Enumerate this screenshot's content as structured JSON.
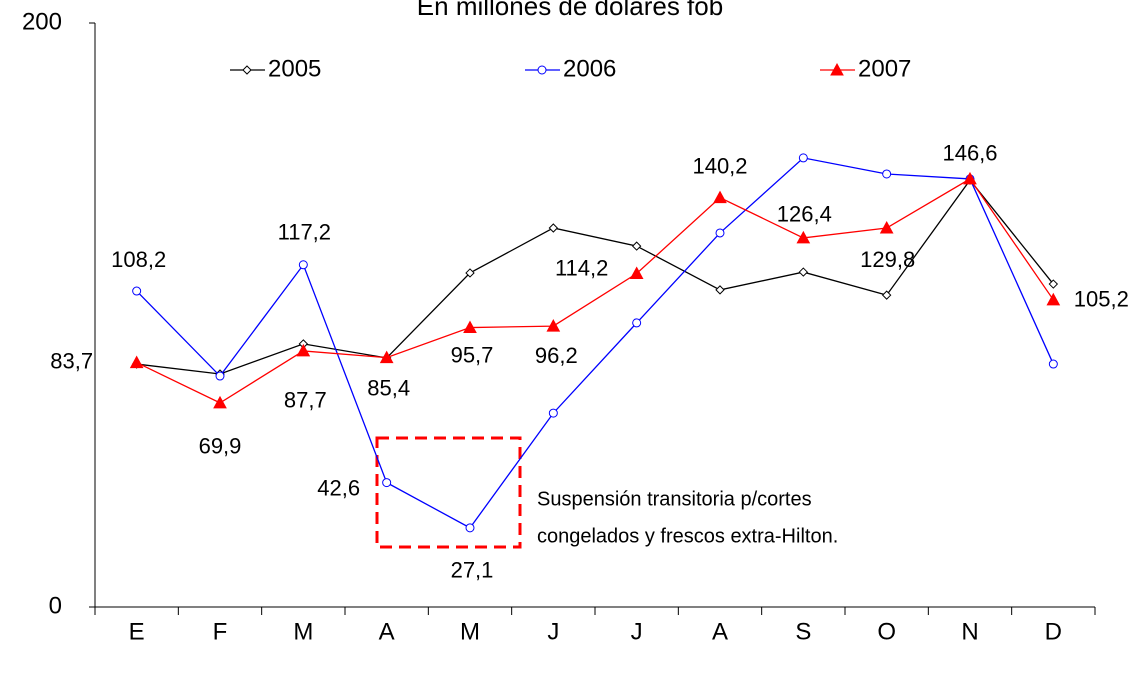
{
  "chart_data": {
    "type": "line",
    "title": "En millones de dólares fob",
    "categories": [
      "E",
      "F",
      "M",
      "A",
      "M",
      "J",
      "J",
      "A",
      "S",
      "O",
      "N",
      "D"
    ],
    "ylim": [
      0,
      200
    ],
    "yticks": [
      0,
      200
    ],
    "series": [
      {
        "name": "2005",
        "color": "#000000",
        "marker": "diamond",
        "values": [
          83.2,
          79.8,
          90.1,
          85.3,
          114.4,
          129.8,
          123.6,
          108.6,
          114.7,
          106.8,
          146.2,
          110.6
        ]
      },
      {
        "name": "2006",
        "color": "#0000ff",
        "marker": "circle",
        "values": [
          108.2,
          79.1,
          117.2,
          42.6,
          27.1,
          66.4,
          97.3,
          128.1,
          153.8,
          148.3,
          146.6,
          83.2
        ],
        "value_labels": [
          "108,2",
          null,
          "117,2",
          "42,6",
          "27,1",
          null,
          null,
          null,
          null,
          null,
          null,
          null
        ]
      },
      {
        "name": "2007",
        "color": "#ff0000",
        "marker": "triangle",
        "values": [
          83.7,
          69.9,
          87.7,
          85.4,
          95.7,
          96.2,
          114.2,
          140.2,
          126.4,
          129.8,
          146.6,
          105.2
        ],
        "value_labels": [
          "83,7",
          "69,9",
          "87,7",
          "85,4",
          "95,7",
          "96,2",
          "114,2",
          "140,2",
          "126,4",
          "129,8",
          "146,6",
          "105,2"
        ]
      }
    ],
    "annotation": [
      "Suspensión transitoria p/cortes",
      "congelados y frescos extra-Hilton."
    ]
  }
}
